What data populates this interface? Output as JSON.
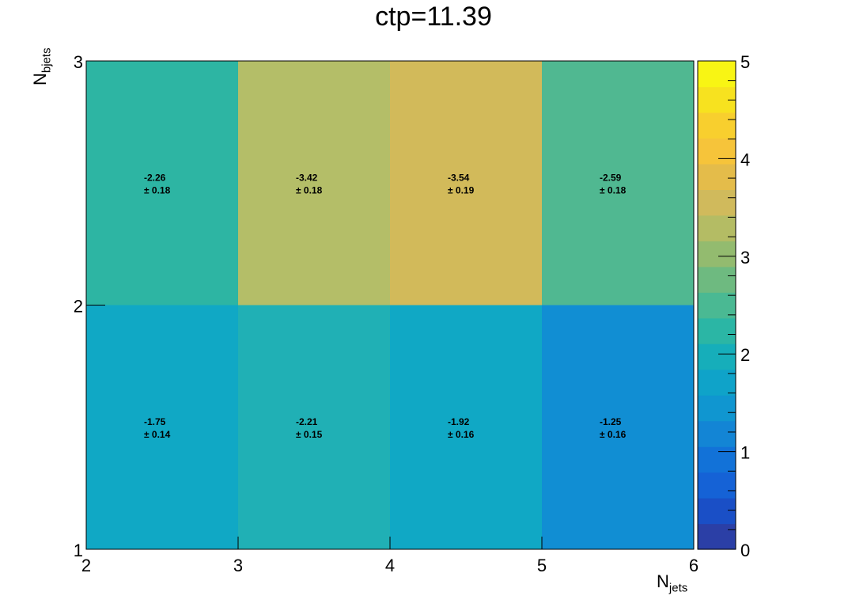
{
  "chart_data": {
    "type": "heatmap",
    "title": "ctp=11.39",
    "xlabel": {
      "main": "N",
      "sub": "jets"
    },
    "ylabel": {
      "main": "N",
      "sub": "bjets"
    },
    "x_edges": [
      2,
      3,
      4,
      5,
      6
    ],
    "y_edges": [
      1,
      2,
      3
    ],
    "x_ticks": [
      "2",
      "3",
      "4",
      "5",
      "6"
    ],
    "y_ticks": [
      "1",
      "2",
      "3"
    ],
    "xlim": [
      2,
      6
    ],
    "ylim": [
      1,
      3
    ],
    "cells": [
      {
        "x": 2.5,
        "y": 2.5,
        "value": -2.26,
        "error": 0.18,
        "label": "-2.26",
        "error_label": "± 0.18",
        "color": "#2db5a3"
      },
      {
        "x": 3.5,
        "y": 2.5,
        "value": -3.42,
        "error": 0.18,
        "label": "-3.42",
        "error_label": "± 0.18",
        "color": "#b4be68"
      },
      {
        "x": 4.5,
        "y": 2.5,
        "value": -3.54,
        "error": 0.19,
        "label": "-3.54",
        "error_label": "± 0.19",
        "color": "#d2ba5a"
      },
      {
        "x": 5.5,
        "y": 2.5,
        "value": -2.59,
        "error": 0.18,
        "label": "-2.59",
        "error_label": "± 0.18",
        "color": "#50b891"
      },
      {
        "x": 2.5,
        "y": 1.5,
        "value": -1.75,
        "error": 0.14,
        "label": "-1.75",
        "error_label": "± 0.14",
        "color": "#10a8c5"
      },
      {
        "x": 3.5,
        "y": 1.5,
        "value": -2.21,
        "error": 0.15,
        "label": "-2.21",
        "error_label": "± 0.15",
        "color": "#20b0b5"
      },
      {
        "x": 4.5,
        "y": 1.5,
        "value": -1.92,
        "error": 0.16,
        "label": "-1.92",
        "error_label": "± 0.16",
        "color": "#10a8c5"
      },
      {
        "x": 5.5,
        "y": 1.5,
        "value": -1.25,
        "error": 0.16,
        "label": "-1.25",
        "error_label": "± 0.16",
        "color": "#118ed3"
      }
    ],
    "colorbar": {
      "range": [
        0,
        5
      ],
      "ticks": [
        "0",
        "1",
        "2",
        "3",
        "4",
        "5"
      ],
      "colors": [
        "#2b3fa6",
        "#1a4fc6",
        "#1562d6",
        "#1272d8",
        "#1385d5",
        "#1096d0",
        "#0fa3c9",
        "#16aeba",
        "#2bb6a5",
        "#4ab993",
        "#6eba80",
        "#93bb6f",
        "#b4bc64",
        "#d0ba5c",
        "#e4bc4a",
        "#f6c43a",
        "#f8cf2e",
        "#f7e21f",
        "#f8f514"
      ]
    }
  }
}
